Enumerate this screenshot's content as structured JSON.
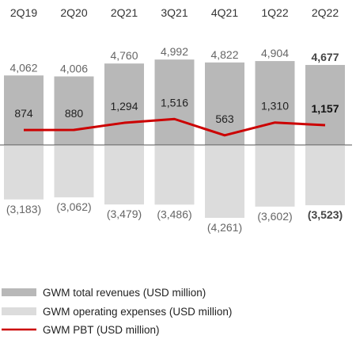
{
  "chart_data": {
    "type": "bar",
    "categories": [
      "2Q19",
      "2Q20",
      "2Q21",
      "3Q21",
      "4Q21",
      "1Q22",
      "2Q22"
    ],
    "series": [
      {
        "name": "GWM total revenues (USD million)",
        "type": "bar",
        "color": "#b8b8b8",
        "values": [
          4062,
          4006,
          4760,
          4992,
          4822,
          4904,
          4677
        ],
        "labels": [
          "4,062",
          "4,006",
          "4,760",
          "4,992",
          "4,822",
          "4,904",
          "4,677"
        ]
      },
      {
        "name": "GWM operating expenses (USD million)",
        "type": "bar",
        "color": "#dcdcdc",
        "values": [
          -3183,
          -3062,
          -3479,
          -3486,
          -4261,
          -3602,
          -3523
        ],
        "labels": [
          "(3,183)",
          "(3,062)",
          "(3,479)",
          "(3,486)",
          "(4,261)",
          "(3,602)",
          "(3,523)"
        ]
      },
      {
        "name": "GWM PBT (USD million)",
        "type": "line",
        "color": "#cc0000",
        "values": [
          874,
          880,
          1294,
          1516,
          563,
          1310,
          1157
        ],
        "labels": [
          "874",
          "880",
          "1,294",
          "1,516",
          "563",
          "1,310",
          "1,157"
        ]
      }
    ],
    "highlight_index": 6,
    "legend_position": "bottom-left",
    "title": "",
    "xlabel": "",
    "ylabel": "",
    "ylim": [
      -4700,
      5450
    ],
    "grid": false
  }
}
